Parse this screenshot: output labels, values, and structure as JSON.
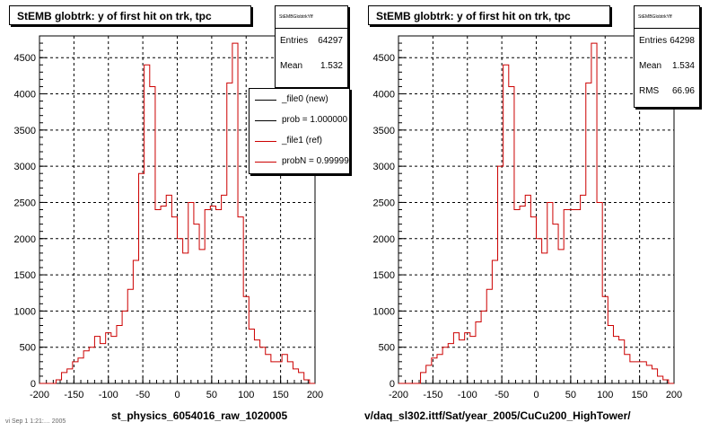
{
  "colors": {
    "histogram": "#cc0000",
    "legend_new": "#000000",
    "legend_ref": "#cc0000",
    "grid": "#000000"
  },
  "footer_text": "vi Sep 1 1:21:… 2005",
  "chart_data": [
    {
      "type": "bar",
      "title": "StEMB globtrk: y of first hit on trk, tpc",
      "xlabel": "st_physics_6054016_raw_1020005",
      "ylabel": "",
      "xlim": [
        -200,
        200
      ],
      "ylim": [
        0,
        4800
      ],
      "xticks": [
        "-200",
        "-150",
        "-100",
        "-50",
        "0",
        "50",
        "100",
        "150",
        "200"
      ],
      "yticks": [
        "0",
        "500",
        "1000",
        "1500",
        "2000",
        "2500",
        "3000",
        "3500",
        "4000",
        "4500"
      ],
      "grid": true,
      "bin_edges_start": -200,
      "bin_width": 8,
      "values": [
        0,
        0,
        0,
        50,
        150,
        200,
        300,
        350,
        450,
        500,
        650,
        550,
        700,
        650,
        800,
        1000,
        1300,
        1700,
        2900,
        4400,
        4100,
        2400,
        2450,
        2600,
        2300,
        2000,
        1800,
        2500,
        2200,
        1850,
        2400,
        2450,
        2400,
        2600,
        4150,
        4700,
        2300,
        1200,
        750,
        600,
        500,
        400,
        300,
        300,
        400,
        300,
        200,
        150,
        50,
        0
      ],
      "stats": {
        "header": "StEMBGlobtrkYff",
        "entries_label": "Entries",
        "entries": "64297",
        "mean_label": "Mean",
        "mean": "1.532"
      },
      "legend": {
        "position": "top-right",
        "entries": [
          {
            "label": "_file0 (new)"
          },
          {
            "label": "prob = 1.000000"
          },
          {
            "label": "_file1 (ref)"
          },
          {
            "label": "probN = 0.999999"
          }
        ]
      }
    },
    {
      "type": "bar",
      "title": "StEMB globtrk: y of first hit on trk, tpc",
      "xlabel": "v/daq_sl302.ittf/Sat/year_2005/CuCu200_HighTower/",
      "ylabel": "",
      "xlim": [
        -200,
        200
      ],
      "ylim": [
        0,
        4800
      ],
      "xticks": [
        "-200",
        "-150",
        "-100",
        "-50",
        "0",
        "50",
        "100",
        "150",
        "200"
      ],
      "yticks": [
        "0",
        "500",
        "1000",
        "1500",
        "2000",
        "2500",
        "3000",
        "3500",
        "4000",
        "4500"
      ],
      "grid": true,
      "bin_edges_start": -200,
      "bin_width": 8,
      "values": [
        0,
        0,
        0,
        0,
        150,
        250,
        350,
        400,
        500,
        550,
        700,
        600,
        700,
        650,
        850,
        1000,
        1300,
        1700,
        3000,
        4400,
        4100,
        2400,
        2450,
        2600,
        2300,
        2000,
        1800,
        2500,
        2200,
        1850,
        2400,
        2400,
        2400,
        2600,
        4150,
        4700,
        2500,
        1200,
        800,
        650,
        600,
        400,
        300,
        300,
        300,
        250,
        200,
        100,
        50,
        0
      ],
      "stats": {
        "header": "StEMBGlobtrkYff",
        "entries_label": "Entries",
        "entries": "64298",
        "mean_label": "Mean",
        "mean": "1.534",
        "rms_label": "RMS",
        "rms": "66.96"
      }
    }
  ]
}
